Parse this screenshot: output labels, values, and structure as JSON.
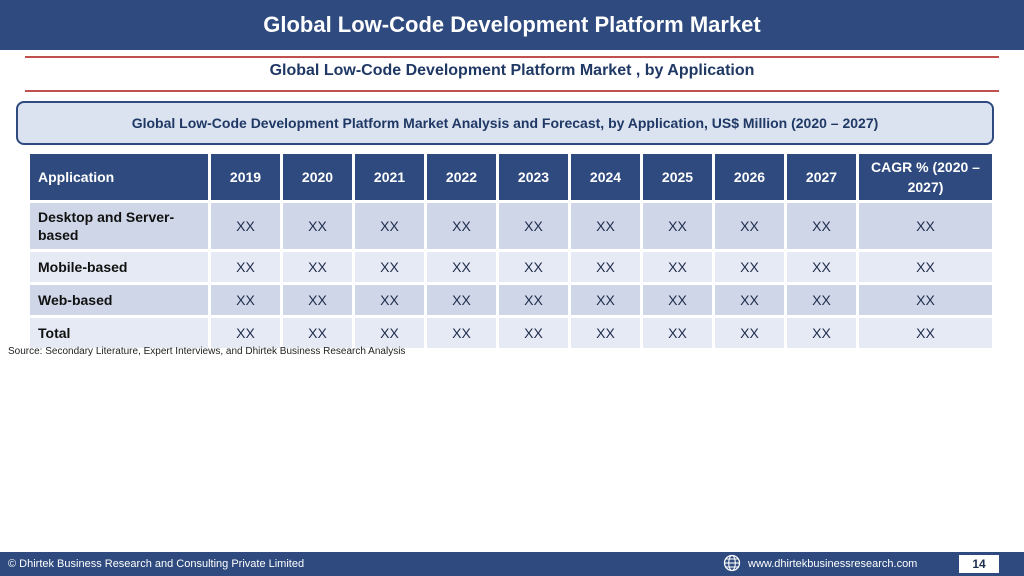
{
  "header": {
    "title": "Global Low-Code Development Platform Market"
  },
  "subtitle": "Global Low-Code Development Platform Market , by Application",
  "banner": "Global Low-Code Development Platform Market  Analysis and Forecast, by Application, US$ Million (2020 – 2027)",
  "table": {
    "headers": [
      "Application",
      "2019",
      "2020",
      "2021",
      "2022",
      "2023",
      "2024",
      "2025",
      "2026",
      "2027",
      "CAGR % (2020 – 2027)"
    ],
    "rows": [
      [
        "Desktop and Server-based",
        "XX",
        "XX",
        "XX",
        "XX",
        "XX",
        "XX",
        "XX",
        "XX",
        "XX",
        "XX"
      ],
      [
        "Mobile-based",
        "XX",
        "XX",
        "XX",
        "XX",
        "XX",
        "XX",
        "XX",
        "XX",
        "XX",
        "XX"
      ],
      [
        "Web-based",
        "XX",
        "XX",
        "XX",
        "XX",
        "XX",
        "XX",
        "XX",
        "XX",
        "XX",
        "XX"
      ],
      [
        "Total",
        "XX",
        "XX",
        "XX",
        "XX",
        "XX",
        "XX",
        "XX",
        "XX",
        "XX",
        "XX"
      ]
    ]
  },
  "source": "Source: Secondary Literature, Expert Interviews, and Dhirtek Business Research Analysis",
  "footer": {
    "copyright": "© Dhirtek Business Research and Consulting Private Limited",
    "website": "www.dhirtekbusinessresearch.com",
    "page_number": "14",
    "globe_icon": "globe-icon"
  },
  "colors": {
    "primary": "#2e4a7e",
    "accent_rule": "#c0504d",
    "row_dark": "#cfd6e8",
    "row_light": "#e6eaf4"
  }
}
